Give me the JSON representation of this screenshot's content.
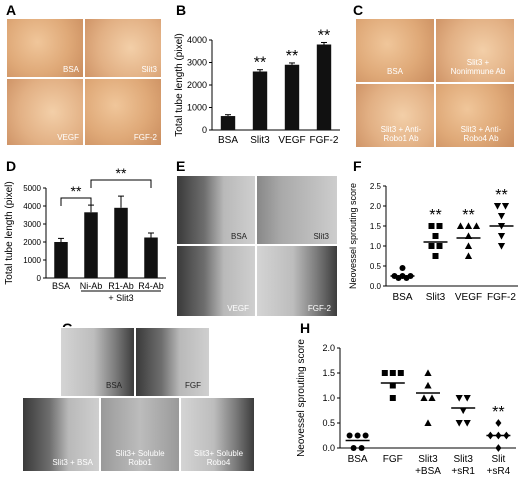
{
  "panels": {
    "A": {
      "letter": "A",
      "labels": [
        "BSA",
        "Slit3",
        "VEGF",
        "FGF-2"
      ]
    },
    "B": {
      "letter": "B"
    },
    "C": {
      "letter": "C",
      "labels": [
        "BSA",
        "Slit3 + Nonimmune Ab",
        "Slit3 + Anti-Robo1 Ab",
        "Slit3 + Anti-Robo4 Ab"
      ]
    },
    "D": {
      "letter": "D"
    },
    "E": {
      "letter": "E",
      "labels": [
        "BSA",
        "Slit3",
        "VEGF",
        "FGF-2"
      ]
    },
    "F": {
      "letter": "F"
    },
    "G": {
      "letter": "G",
      "labels": [
        "BSA",
        "FGF",
        "Slit3 + BSA",
        "Slit3+ Soluble Robo1",
        "Slit3+ Soluble Robo4"
      ]
    },
    "H": {
      "letter": "H"
    }
  },
  "chart_data": [
    {
      "id": "B",
      "type": "bar",
      "categories": [
        "BSA",
        "Slit3",
        "VEGF",
        "FGF-2"
      ],
      "values": [
        620,
        2600,
        2900,
        3800
      ],
      "errors": [
        60,
        80,
        80,
        90
      ],
      "significance": [
        "",
        "**",
        "**",
        "**"
      ],
      "ylabel": "Total tube length (pixel)",
      "ylim": [
        0,
        4000
      ],
      "yticks": [
        0,
        1000,
        2000,
        3000,
        4000
      ]
    },
    {
      "id": "D",
      "type": "bar",
      "categories": [
        "BSA",
        "Ni-Ab",
        "R1-Ab",
        "R4-Ab"
      ],
      "values": [
        2000,
        3650,
        3900,
        2250
      ],
      "errors": [
        200,
        400,
        650,
        250
      ],
      "group_label": "+ Slit3",
      "brackets": [
        {
          "from": "BSA",
          "to": "Ni-Ab",
          "label": "**"
        },
        {
          "from": "Ni-Ab",
          "to": "R4-Ab",
          "label": "**"
        }
      ],
      "ylabel": "Total tube length (pixel)",
      "ylim": [
        0,
        5000
      ],
      "yticks": [
        0,
        1000,
        2000,
        3000,
        4000,
        5000
      ]
    },
    {
      "id": "F",
      "type": "scatter",
      "categories": [
        "BSA",
        "Slit3",
        "VEGF",
        "FGF-2"
      ],
      "markers": [
        "circle",
        "square",
        "triangle",
        "triangle-down"
      ],
      "points": [
        [
          0.45,
          0.25,
          0.2,
          0.25,
          0.2,
          0.25
        ],
        [
          1.5,
          1.5,
          1.25,
          1.0,
          1.0,
          0.75
        ],
        [
          1.5,
          1.5,
          1.5,
          1.25,
          1.0,
          0.75
        ],
        [
          2.0,
          2.0,
          1.75,
          1.5,
          1.25,
          1.0
        ]
      ],
      "means": [
        0.25,
        1.1,
        1.2,
        1.5
      ],
      "significance": [
        "",
        "**",
        "**",
        "**"
      ],
      "ylabel": "Neovessel sprouting score",
      "ylim": [
        0,
        2.5
      ],
      "yticks": [
        0.0,
        0.5,
        1.0,
        1.5,
        2.0,
        2.5
      ]
    },
    {
      "id": "H",
      "type": "scatter",
      "categories": [
        "BSA",
        "FGF",
        "Slit3 +BSA",
        "Slit3 +sR1",
        "Slit +sR4"
      ],
      "markers": [
        "circle",
        "square",
        "triangle",
        "triangle-down",
        "diamond"
      ],
      "points": [
        [
          0.25,
          0.25,
          0.25,
          0.0,
          0.0
        ],
        [
          1.5,
          1.5,
          1.5,
          1.25,
          1.0
        ],
        [
          1.5,
          1.25,
          1.0,
          1.0,
          0.5
        ],
        [
          1.0,
          1.0,
          0.75,
          0.5,
          0.5
        ],
        [
          0.5,
          0.25,
          0.25,
          0.25,
          0.0
        ]
      ],
      "means": [
        0.15,
        1.3,
        1.1,
        0.8,
        0.25
      ],
      "significance": [
        "",
        "",
        "",
        "",
        "**"
      ],
      "ylabel": "Neovessel sprouting score",
      "ylim": [
        0,
        2.0
      ],
      "yticks": [
        0.0,
        0.5,
        1.0,
        1.5,
        2.0
      ]
    }
  ]
}
